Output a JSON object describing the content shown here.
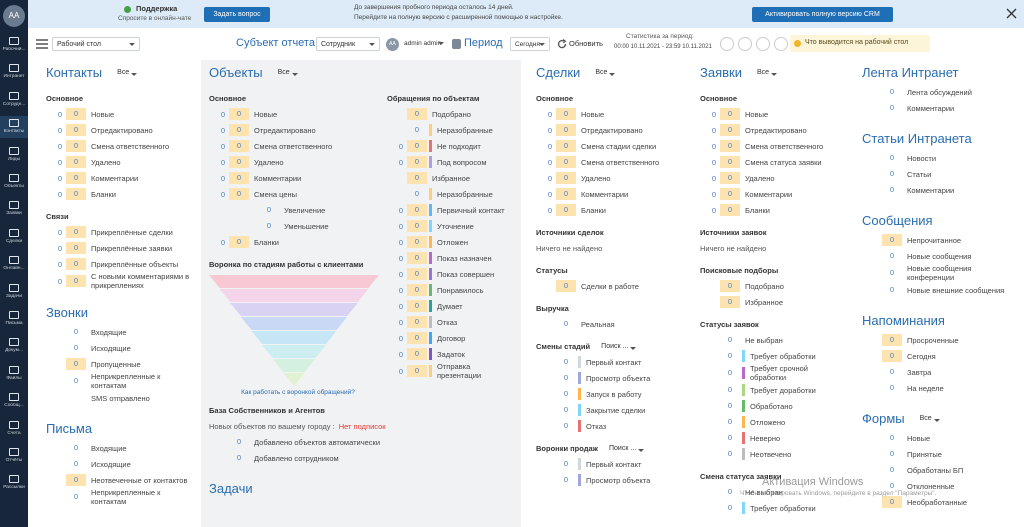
{
  "sidebar": {
    "avatar": "AA",
    "items": [
      "Рабочий...",
      "Интранет",
      "Сотрудн...",
      "Контакты",
      "Лиды",
      "Объекты",
      "Заявки",
      "Сделки",
      "Онлайн...",
      "Задачи",
      "Письма",
      "Докум...",
      "Файлы",
      "Сообщ...",
      "Счета",
      "Отчёты",
      "Рассылки"
    ]
  },
  "banner": {
    "support_title": "Поддержка",
    "support_sub": "Спросите в онлайн-чате",
    "ask_button": "Задать вопрос",
    "trial_line1": "До завершения пробного периода осталось 14 дней.",
    "trial_line2": "Перейдите на полную версию с расширенной помощью в настройке.",
    "activate_button": "Активировать полную версию CRM"
  },
  "toolbar": {
    "workspace": "Рабочий стол",
    "subject_label": "Субъект отчета",
    "subject": "Сотрудник",
    "user_initials": "AA",
    "user": "admin admin",
    "period_label": "Период",
    "period": "Сегодня",
    "refresh": "Обновить",
    "stats_label": "Статистика за период:",
    "stats_range": "00:00 10.11.2021 - 23:59 10.11.2021",
    "hint": "Что выводится на рабочий стол"
  },
  "columns": [
    {
      "items": [
        {
          "h1": "Контакты",
          "filter": "Все"
        },
        {
          "h2": "Основное"
        },
        {
          "counts": [
            0,
            0
          ],
          "label": "Новые"
        },
        {
          "counts": [
            0,
            0
          ],
          "label": "Отредактировано"
        },
        {
          "counts": [
            0,
            0
          ],
          "label": "Смена ответственного"
        },
        {
          "counts": [
            0,
            0
          ],
          "label": "Удалено"
        },
        {
          "counts": [
            0,
            0
          ],
          "label": "Комментарии"
        },
        {
          "counts": [
            0,
            0
          ],
          "label": "Бланки"
        },
        {
          "h2": "Связи"
        },
        {
          "counts": [
            0,
            0
          ],
          "label": "Прикреплённые сделки"
        },
        {
          "counts": [
            0,
            0
          ],
          "label": "Прикреплённые заявки"
        },
        {
          "counts": [
            0,
            0
          ],
          "label": "Прикреплённые объекты"
        },
        {
          "counts": [
            0,
            0
          ],
          "label": "С новыми комментариями в прикреплениях"
        },
        {
          "h1": "Звонки"
        },
        {
          "counts": [
            0
          ],
          "label": "Входящие"
        },
        {
          "counts": [
            0
          ],
          "label": "Исходящие"
        },
        {
          "counts": [
            0
          ],
          "label": "Пропущенные",
          "hl": true
        },
        {
          "counts": [
            0
          ],
          "label": "Неприкрепленные к контактам"
        },
        {
          "label": "SMS отправлено"
        },
        {
          "h1": "Письма"
        },
        {
          "counts": [
            0
          ],
          "label": "Входящие"
        },
        {
          "counts": [
            0
          ],
          "label": "Исходящие"
        },
        {
          "counts": [
            0
          ],
          "label": "Неотвеченные от контактов",
          "hl": true
        },
        {
          "counts": [
            0
          ],
          "label": "Неприкрепленные к контактам"
        }
      ]
    },
    {
      "items": [
        {
          "h1": "Объекты",
          "filter": "Все"
        }
      ],
      "split": [
        [
          {
            "h2": "Основное"
          },
          {
            "counts": [
              0,
              0
            ],
            "label": "Новые"
          },
          {
            "counts": [
              0,
              0
            ],
            "label": "Отредактировано"
          },
          {
            "counts": [
              0,
              0
            ],
            "label": "Смена ответственного"
          },
          {
            "counts": [
              0,
              0
            ],
            "label": "Удалено"
          },
          {
            "counts": [
              0,
              0
            ],
            "label": "Комментарии"
          },
          {
            "counts": [
              0,
              0
            ],
            "label": "Смена цены"
          },
          {
            "counts": [
              0
            ],
            "label": "Увеличение",
            "indent": true
          },
          {
            "counts": [
              0
            ],
            "label": "Уменьшение",
            "indent": true
          },
          {
            "counts": [
              0,
              0
            ],
            "label": "Бланки"
          },
          {
            "funnel": "Воронка по стадиям работы с клиентами",
            "link": "Как работать с воронкой обращений?"
          }
        ],
        [
          {
            "h2": "Обращения по объектам"
          },
          {
            "counts": [
              0
            ],
            "label": "Подобрано",
            "hl": true
          },
          {
            "counts": [
              0
            ],
            "label": "Неразобранные",
            "bar": "#ffcc80"
          },
          {
            "counts": [
              0,
              0
            ],
            "label": "Не подходит",
            "bar": "#e57373"
          },
          {
            "counts": [
              0,
              0
            ],
            "label": "Под вопросом",
            "bar": "#b39ddb"
          },
          {
            "counts": [
              0
            ],
            "label": "Избранное",
            "hl": true
          },
          {
            "counts": [
              0
            ],
            "label": "Неразобранные",
            "bar": "#ffcc80"
          },
          {
            "counts": [
              0,
              0
            ],
            "label": "Первичный контакт",
            "bar": "#64b5f6"
          },
          {
            "counts": [
              0,
              0
            ],
            "label": "Уточнение",
            "bar": "#81d4fa"
          },
          {
            "counts": [
              0,
              0
            ],
            "label": "Отложен",
            "bar": "#ffb74d"
          },
          {
            "counts": [
              0,
              0
            ],
            "label": "Показ назначен",
            "bar": "#ba68c8"
          },
          {
            "counts": [
              0,
              0
            ],
            "label": "Показ совершен",
            "bar": "#9575cd"
          },
          {
            "counts": [
              0,
              0
            ],
            "label": "Понравилось",
            "bar": "#66bb6a"
          },
          {
            "counts": [
              0,
              0
            ],
            "label": "Думает",
            "bar": "#26a69a"
          },
          {
            "counts": [
              0,
              0
            ],
            "label": "Отказ",
            "bar": "#bdbdbd"
          },
          {
            "counts": [
              0,
              0
            ],
            "label": "Договор",
            "bar": "#42a5f5"
          },
          {
            "counts": [
              0,
              0
            ],
            "label": "Задаток",
            "bar": "#7e57c2"
          },
          {
            "counts": [
              0,
              0
            ],
            "label": "Отправка презентации",
            "bar": "#ffcc80"
          }
        ]
      ],
      "after": [
        {
          "h2": "База Собственников и Агентов"
        },
        {
          "note": "Новых объектов по вашему городу :",
          "alert": "Нет подписок"
        },
        {
          "counts": [
            0
          ],
          "label": "Добавлено объектов автоматически"
        },
        {
          "counts": [
            0
          ],
          "label": "Добавлено сотрудником"
        },
        {
          "h1": "Задачи"
        }
      ]
    },
    {
      "items": [
        {
          "h1": "Сделки",
          "filter": "Все"
        },
        {
          "h2": "Основное"
        },
        {
          "counts": [
            0,
            0
          ],
          "label": "Новые"
        },
        {
          "counts": [
            0,
            0
          ],
          "label": "Отредактировано"
        },
        {
          "counts": [
            0,
            0
          ],
          "label": "Смена стадии сделки"
        },
        {
          "counts": [
            0,
            0
          ],
          "label": "Смена ответственного"
        },
        {
          "counts": [
            0,
            0
          ],
          "label": "Удалено"
        },
        {
          "counts": [
            0,
            0
          ],
          "label": "Комментарии"
        },
        {
          "counts": [
            0,
            0
          ],
          "label": "Бланки"
        },
        {
          "h2": "Источники сделок"
        },
        {
          "note": "Ничего не найдено"
        },
        {
          "h2": "Статусы"
        },
        {
          "counts": [
            0
          ],
          "label": "Сделки в работе",
          "hl": true
        },
        {
          "h2": "Выручка"
        },
        {
          "counts": [
            0
          ],
          "label": "Реальная"
        },
        {
          "h2": "Смены стадий",
          "filter": "Поиск ..."
        },
        {
          "counts": [
            0
          ],
          "label": "Первый контакт",
          "bar": "#cfd8dc"
        },
        {
          "counts": [
            0
          ],
          "label": "Просмотр объекта",
          "bar": "#9fa8da"
        },
        {
          "counts": [
            0
          ],
          "label": "Запуск в работу",
          "bar": "#ffb74d"
        },
        {
          "counts": [
            0
          ],
          "label": "Закрытие сделки",
          "bar": "#81d4fa"
        },
        {
          "counts": [
            0
          ],
          "label": "Отказ",
          "bar": "#e57373"
        },
        {
          "h2": "Воронки продаж",
          "filter": "Поиск ..."
        },
        {
          "counts": [
            0
          ],
          "label": "Первый контакт",
          "bar": "#cfd8dc"
        },
        {
          "counts": [
            0
          ],
          "label": "Просмотр объекта",
          "bar": "#9fa8da"
        }
      ]
    },
    {
      "items": [
        {
          "h1": "Заявки",
          "filter": "Все"
        },
        {
          "h2": "Основное"
        },
        {
          "counts": [
            0,
            0
          ],
          "label": "Новые"
        },
        {
          "counts": [
            0,
            0
          ],
          "label": "Отредактировано"
        },
        {
          "counts": [
            0,
            0
          ],
          "label": "Смена ответственного"
        },
        {
          "counts": [
            0,
            0
          ],
          "label": "Смена статуса заявки"
        },
        {
          "counts": [
            0,
            0
          ],
          "label": "Удалено"
        },
        {
          "counts": [
            0,
            0
          ],
          "label": "Комментарии"
        },
        {
          "counts": [
            0,
            0
          ],
          "label": "Бланки"
        },
        {
          "h2": "Источники заявок"
        },
        {
          "note": "Ничего не найдено"
        },
        {
          "h2": "Поисковые подборы"
        },
        {
          "counts": [
            0
          ],
          "label": "Подобрано",
          "hl": true
        },
        {
          "counts": [
            0
          ],
          "label": "Избранное",
          "hl": true
        },
        {
          "h2": "Статусы заявок"
        },
        {
          "counts": [
            0
          ],
          "label": "Не выбран"
        },
        {
          "counts": [
            0
          ],
          "label": "Требует обработки",
          "bar": "#81d4fa"
        },
        {
          "counts": [
            0
          ],
          "label": "Требует срочной обработки",
          "bar": "#ba68c8"
        },
        {
          "counts": [
            0
          ],
          "label": "Требует доработки",
          "bar": "#aed581"
        },
        {
          "counts": [
            0
          ],
          "label": "Обработано",
          "bar": "#66bb6a"
        },
        {
          "counts": [
            0
          ],
          "label": "Отложено",
          "bar": "#ffb74d"
        },
        {
          "counts": [
            0
          ],
          "label": "Неверно",
          "bar": "#e57373"
        },
        {
          "counts": [
            0
          ],
          "label": "Неотвечено",
          "bar": "#bdbdbd"
        },
        {
          "h2": "Смена статуса заявки"
        },
        {
          "counts": [
            0
          ],
          "label": "Не выбран"
        },
        {
          "counts": [
            0
          ],
          "label": "Требует обработки",
          "bar": "#81d4fa"
        }
      ]
    },
    {
      "items": [
        {
          "h1": "Лента Интранет"
        },
        {
          "counts": [
            0
          ],
          "label": "Лента обсуждений"
        },
        {
          "counts": [
            0
          ],
          "label": "Комментарии"
        },
        {
          "h1": "Статьи Интранета"
        },
        {
          "counts": [
            0
          ],
          "label": "Новости"
        },
        {
          "counts": [
            0
          ],
          "label": "Статьи"
        },
        {
          "counts": [
            0
          ],
          "label": "Комментарии"
        },
        {
          "h1": "Сообщения"
        },
        {
          "counts": [
            0
          ],
          "label": "Непрочитанное",
          "hl": true
        },
        {
          "counts": [
            0
          ],
          "label": "Новые сообщения"
        },
        {
          "counts": [
            0
          ],
          "label": "Новые сообщения конференции"
        },
        {
          "counts": [
            0
          ],
          "label": "Новые внешние сообщения"
        },
        {
          "h1": "Напоминания"
        },
        {
          "counts": [
            0
          ],
          "label": "Просроченные",
          "hl": true
        },
        {
          "counts": [
            0
          ],
          "label": "Сегодня",
          "hl": true
        },
        {
          "counts": [
            0
          ],
          "label": "Завтра"
        },
        {
          "counts": [
            0
          ],
          "label": "На неделе"
        },
        {
          "h1": "Формы",
          "filter": "Все"
        },
        {
          "counts": [
            0
          ],
          "label": "Новые"
        },
        {
          "counts": [
            0
          ],
          "label": "Принятые"
        },
        {
          "counts": [
            0
          ],
          "label": "Обработаны БП"
        },
        {
          "counts": [
            0
          ],
          "label": "Отклоненные"
        },
        {
          "counts": [
            0
          ],
          "label": "Необработанные",
          "hl": true
        }
      ]
    }
  ],
  "watermark": {
    "title": "Активация Windows",
    "text": "Чтобы активировать Windows, перейдите в раздел \"Параметры\"."
  }
}
